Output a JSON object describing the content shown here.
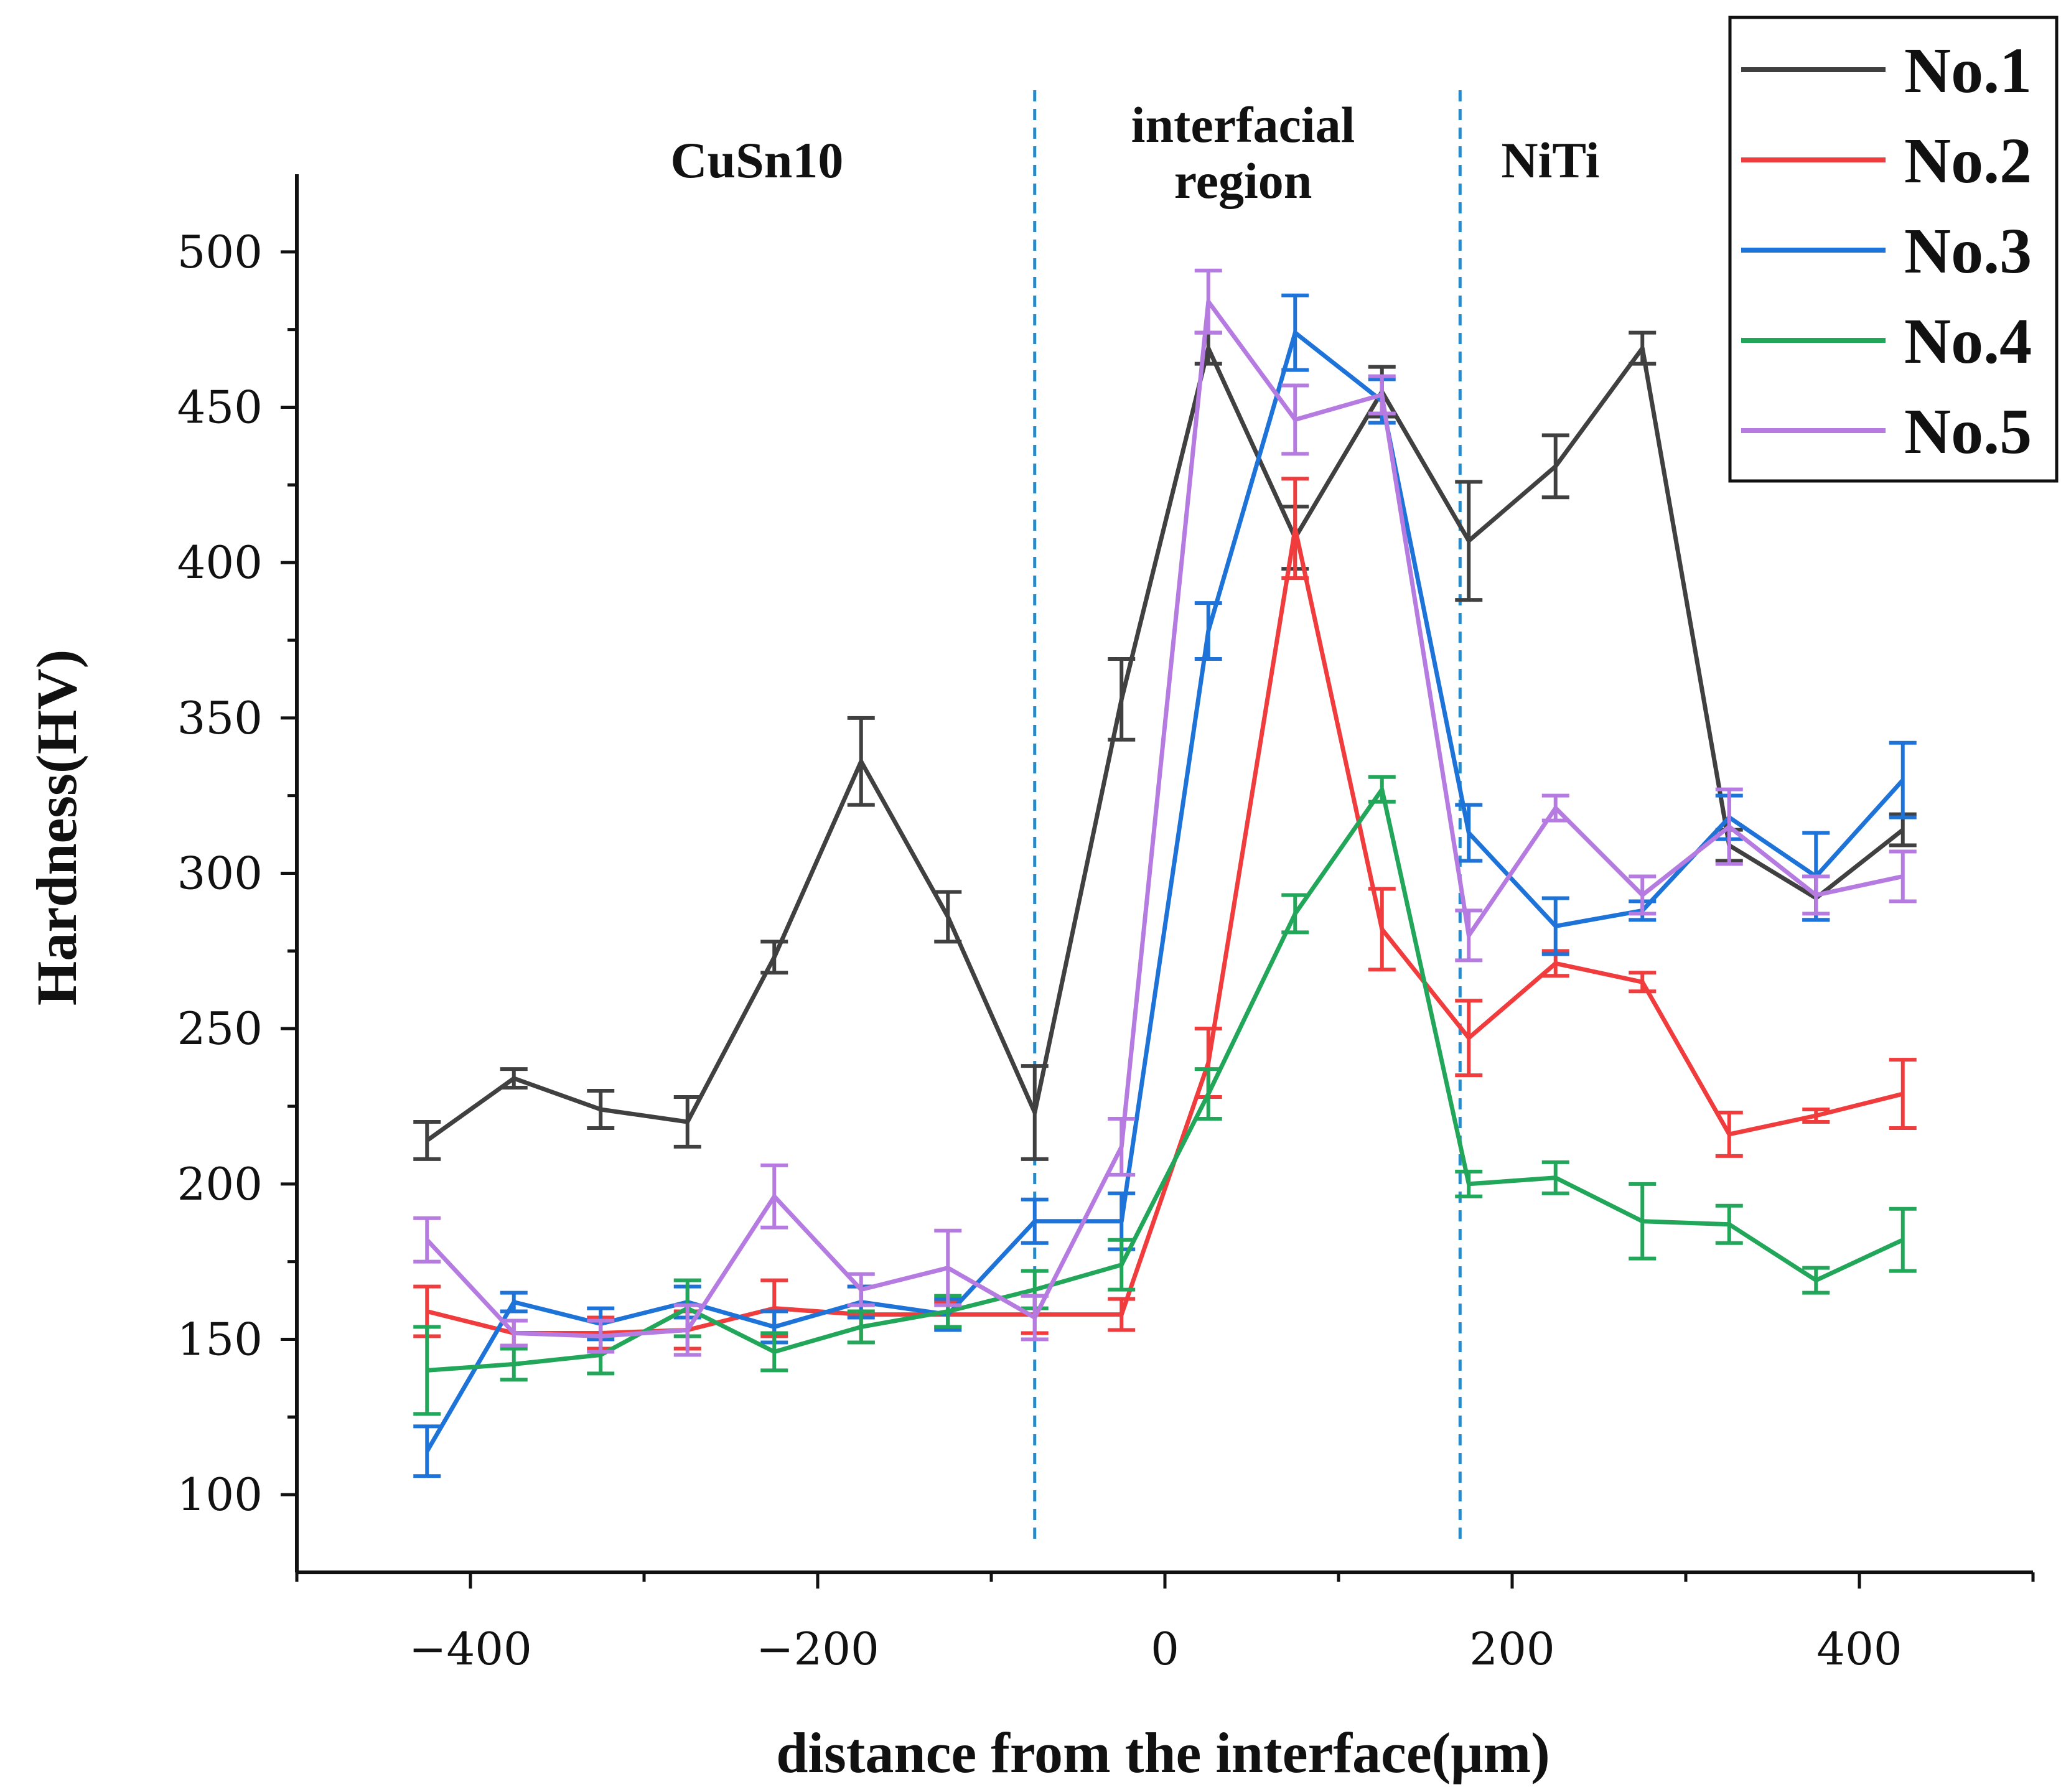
{
  "chart_data": {
    "type": "line",
    "title": "",
    "xlabel": "distance from the interface(μm)",
    "ylabel": "Hardness(HV)",
    "xlim": [
      -500,
      500
    ],
    "ylim": [
      75,
      525
    ],
    "x_ticks": [
      -400,
      -200,
      0,
      200,
      400
    ],
    "x_tick_labels": [
      "−400",
      "−200",
      "0",
      "200",
      "400"
    ],
    "y_ticks": [
      100,
      150,
      200,
      250,
      300,
      350,
      400,
      450,
      500
    ],
    "y_tick_labels": [
      "100",
      "150",
      "200",
      "250",
      "300",
      "350",
      "400",
      "450",
      "500"
    ],
    "x": [
      -425,
      -375,
      -325,
      -275,
      -225,
      -175,
      -125,
      -75,
      -25,
      25,
      75,
      125,
      175,
      225,
      275,
      325,
      375,
      425
    ],
    "region_boundaries": [
      -75,
      170
    ],
    "region_labels": [
      {
        "text": [
          "CuSn10"
        ],
        "x": -235
      },
      {
        "text": [
          "interfacial",
          "region"
        ],
        "x": 45
      },
      {
        "text": [
          "NiTi"
        ],
        "x": 222
      }
    ],
    "legend_position": "top-right",
    "series": [
      {
        "name": "No.1",
        "color": "#404040",
        "values": [
          214,
          234,
          224,
          220,
          273,
          336,
          286,
          223,
          356,
          469,
          408,
          455,
          407,
          431,
          469,
          309,
          292,
          314
        ],
        "errors": [
          6,
          3,
          6,
          8,
          5,
          14,
          8,
          15,
          13,
          5,
          10,
          8,
          19,
          10,
          5,
          5,
          7,
          5
        ]
      },
      {
        "name": "No.2",
        "color": "#f03c3c",
        "values": [
          159,
          152,
          152,
          153,
          160,
          158,
          158,
          158,
          158,
          239,
          411,
          282,
          247,
          271,
          265,
          216,
          222,
          229
        ],
        "errors": [
          8,
          4,
          5,
          6,
          9,
          9,
          4,
          6,
          5,
          11,
          16,
          13,
          12,
          4,
          3,
          7,
          2,
          11
        ]
      },
      {
        "name": "No.3",
        "color": "#1e73d8",
        "values": [
          114,
          162,
          155,
          162,
          154,
          162,
          158,
          188,
          188,
          378,
          474,
          452,
          313,
          283,
          288,
          318,
          299,
          330
        ],
        "errors": [
          8,
          3,
          5,
          5,
          5,
          5,
          5,
          7,
          9,
          9,
          12,
          7,
          9,
          9,
          3,
          7,
          14,
          12
        ]
      },
      {
        "name": "No.4",
        "color": "#22a65a",
        "values": [
          140,
          142,
          145,
          160,
          146,
          154,
          159,
          166,
          174,
          229,
          287,
          327,
          200,
          202,
          188,
          187,
          169,
          182
        ],
        "errors": [
          14,
          5,
          6,
          9,
          6,
          5,
          5,
          6,
          8,
          8,
          6,
          4,
          4,
          5,
          12,
          6,
          4,
          10
        ]
      },
      {
        "name": "No.5",
        "color": "#b57be0",
        "values": [
          182,
          152,
          151,
          153,
          196,
          166,
          173,
          157,
          212,
          484,
          446,
          454,
          280,
          321,
          293,
          315,
          293,
          299
        ],
        "errors": [
          7,
          4,
          5,
          8,
          10,
          5,
          12,
          7,
          9,
          10,
          11,
          6,
          8,
          4,
          6,
          12,
          6,
          8
        ]
      }
    ]
  }
}
